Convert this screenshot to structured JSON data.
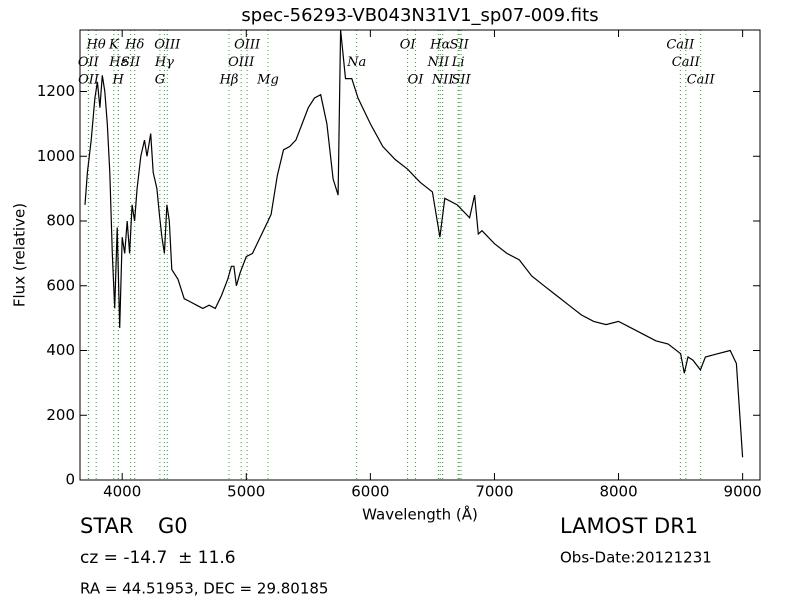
{
  "chart_data": {
    "type": "line",
    "title": "spec-56293-VB043N31V1_sp07-009.fits",
    "x_label": "Wavelength (Å)",
    "y_label": "Flux (relative)",
    "xlim": [
      3660,
      9140
    ],
    "ylim": [
      0,
      1390
    ],
    "xticks": [
      4000,
      5000,
      6000,
      7000,
      8000,
      9000
    ],
    "yticks": [
      0,
      200,
      400,
      600,
      800,
      1000,
      1200
    ],
    "series": [
      {
        "color": "#000000",
        "x": [
          3700,
          3720,
          3750,
          3780,
          3800,
          3820,
          3840,
          3860,
          3880,
          3900,
          3920,
          3940,
          3960,
          3980,
          4000,
          4020,
          4040,
          4060,
          4080,
          4100,
          4120,
          4150,
          4180,
          4200,
          4230,
          4250,
          4280,
          4300,
          4320,
          4340,
          4360,
          4380,
          4400,
          4450,
          4500,
          4550,
          4600,
          4650,
          4700,
          4750,
          4800,
          4850,
          4880,
          4900,
          4920,
          4950,
          5000,
          5050,
          5100,
          5150,
          5200,
          5250,
          5300,
          5350,
          5400,
          5450,
          5500,
          5550,
          5600,
          5650,
          5700,
          5740,
          5760,
          5800,
          5850,
          5900,
          6000,
          6100,
          6200,
          6300,
          6400,
          6500,
          6560,
          6600,
          6700,
          6800,
          6840,
          6870,
          6900,
          7000,
          7100,
          7200,
          7300,
          7400,
          7500,
          7600,
          7700,
          7800,
          7900,
          8000,
          8100,
          8200,
          8300,
          8400,
          8500,
          8530,
          8560,
          8600,
          8660,
          8700,
          8800,
          8900,
          8950,
          9000
        ],
        "values": [
          850,
          950,
          1050,
          1180,
          1230,
          1150,
          1250,
          1200,
          1100,
          950,
          700,
          530,
          780,
          470,
          750,
          700,
          800,
          700,
          850,
          800,
          900,
          1000,
          1050,
          1000,
          1070,
          950,
          900,
          820,
          750,
          700,
          850,
          800,
          650,
          620,
          560,
          550,
          540,
          530,
          540,
          530,
          570,
          620,
          660,
          660,
          600,
          640,
          690,
          700,
          740,
          780,
          820,
          940,
          1020,
          1030,
          1050,
          1100,
          1150,
          1180,
          1190,
          1100,
          930,
          880,
          1390,
          1240,
          1240,
          1180,
          1100,
          1030,
          990,
          960,
          920,
          890,
          750,
          870,
          850,
          810,
          880,
          760,
          770,
          730,
          700,
          680,
          630,
          600,
          570,
          540,
          510,
          490,
          480,
          490,
          470,
          450,
          430,
          420,
          390,
          330,
          380,
          370,
          340,
          380,
          390,
          400,
          360,
          70
        ]
      }
    ],
    "line_color": "#2ca02c",
    "line_rows": [
      [
        {
          "label": "Hθ",
          "wavelength": 3790
        },
        {
          "label": "K",
          "wavelength": 3933
        },
        {
          "label": "Hδ",
          "wavelength": 4101
        },
        {
          "label": "OIII",
          "wavelength": 4363
        },
        {
          "label": "OIII",
          "wavelength": 5007
        },
        {
          "label": "OI",
          "wavelength": 6300
        },
        {
          "label": "Hα",
          "wavelength": 6563
        },
        {
          "label": "SII",
          "wavelength": 6716
        },
        {
          "label": "CaII",
          "wavelength": 8498
        }
      ],
      [
        {
          "label": "OII",
          "wavelength": 3727
        },
        {
          "label": "Hε",
          "wavelength": 3970
        },
        {
          "label": "SII",
          "wavelength": 4068
        },
        {
          "label": "Hγ",
          "wavelength": 4340
        },
        {
          "label": "OIII",
          "wavelength": 4959
        },
        {
          "label": "Na",
          "wavelength": 5890
        },
        {
          "label": "NII",
          "wavelength": 6548
        },
        {
          "label": "Li",
          "wavelength": 6707
        },
        {
          "label": "CaII",
          "wavelength": 8542
        }
      ],
      [
        {
          "label": "OII",
          "wavelength": 3729
        },
        {
          "label": "H",
          "wavelength": 3968
        },
        {
          "label": "G",
          "wavelength": 4304
        },
        {
          "label": "Hβ",
          "wavelength": 4861
        },
        {
          "label": "Mg",
          "wavelength": 5175
        },
        {
          "label": "OI",
          "wavelength": 6364
        },
        {
          "label": "NII",
          "wavelength": 6583
        },
        {
          "label": "SII",
          "wavelength": 6731
        },
        {
          "label": "CaII",
          "wavelength": 8662
        }
      ]
    ]
  },
  "footer": {
    "class": "STAR",
    "subclass": "G0",
    "cz": "cz = -14.7  ± 11.6",
    "coords": "RA = 44.51953, DEC = 29.80185",
    "survey": "LAMOST DR1",
    "obs_date": "Obs-Date:20121231"
  }
}
